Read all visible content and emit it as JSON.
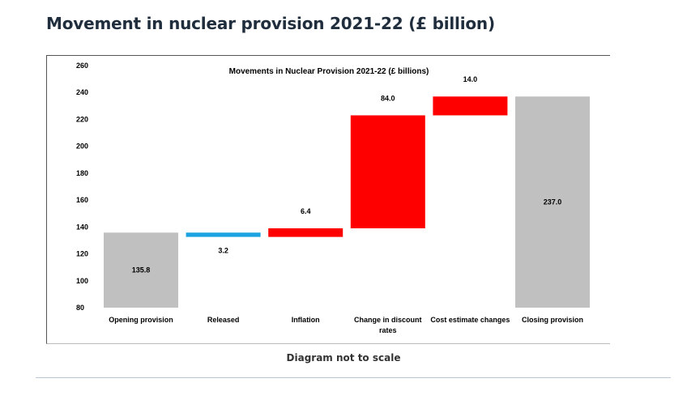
{
  "page": {
    "heading": "Movement in nuclear provision 2021-22 (£ billion)",
    "caption": "Diagram not to scale"
  },
  "colors": {
    "total": "#c0c0c0",
    "decrease": "#1aa3e0",
    "increase": "#ff0000"
  },
  "chart_data": {
    "type": "bar",
    "subtype": "waterfall",
    "title": "Movements in Nuclear Provision 2021-22 (£ billions)",
    "xlabel": "",
    "ylabel": "",
    "ylim": [
      80,
      260
    ],
    "yticks": [
      80,
      100,
      120,
      140,
      160,
      180,
      200,
      220,
      240,
      260
    ],
    "grid": false,
    "categories": [
      [
        "Opening provision"
      ],
      [
        "Released"
      ],
      [
        "Inflation"
      ],
      [
        "Change in discount",
        "rates"
      ],
      [
        "Cost estimate changes"
      ],
      [
        "Closing provision"
      ]
    ],
    "bars": [
      {
        "kind": "total",
        "start": 0,
        "end": 135.8,
        "label": "135.8"
      },
      {
        "kind": "decrease",
        "start": 135.8,
        "end": 132.6,
        "label": "3.2"
      },
      {
        "kind": "increase",
        "start": 132.6,
        "end": 139.0,
        "label": "6.4"
      },
      {
        "kind": "increase",
        "start": 139.0,
        "end": 223.0,
        "label": "84.0"
      },
      {
        "kind": "increase",
        "start": 223.0,
        "end": 237.0,
        "label": "14.0"
      },
      {
        "kind": "total",
        "start": 0,
        "end": 237.0,
        "label": "237.0"
      }
    ]
  }
}
